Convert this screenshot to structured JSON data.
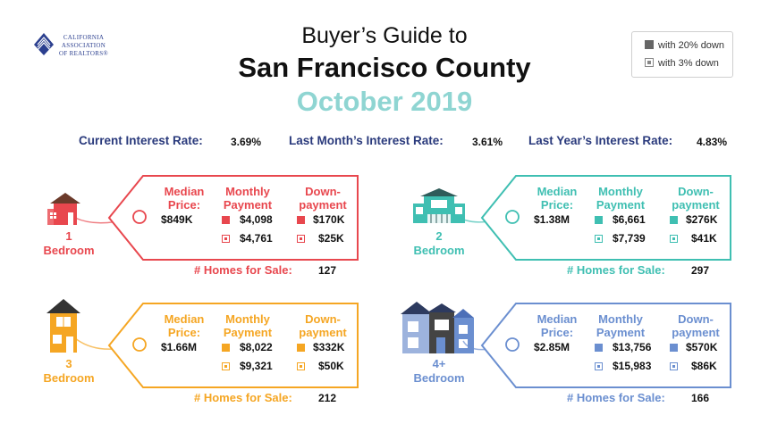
{
  "logo": {
    "line1": "CALIFORNIA",
    "line2": "ASSOCIATION",
    "line3": "OF REALTORS®"
  },
  "title": {
    "line1": "Buyer’s Guide to",
    "line2": "San Francisco County",
    "line3": "October 2019"
  },
  "legend": {
    "item1": "with 20% down",
    "item2": "with 3% down"
  },
  "rates": {
    "current_label": "Current Interest Rate:",
    "current_value": "3.69%",
    "last_month_label": "Last Month’s Interest Rate:",
    "last_month_value": "3.61%",
    "last_year_label": "Last Year’s Interest Rate:",
    "last_year_value": "4.83%"
  },
  "headers": {
    "median": "Median\nPrice:",
    "monthly": "Monthly\nPayment",
    "down": "Down-\npayment",
    "homes_for_sale": "# Homes for Sale:"
  },
  "cards": [
    {
      "bedroom_label": "1\nBedroom",
      "color": "#e8474e",
      "median": "$849K",
      "monthly_20": "$4,098",
      "monthly_3": "$4,761",
      "down_20": "$170K",
      "down_3": "$25K",
      "homes_for_sale": "127"
    },
    {
      "bedroom_label": "2\nBedroom",
      "color": "#3fbfb2",
      "median": "$1.38M",
      "monthly_20": "$6,661",
      "monthly_3": "$7,739",
      "down_20": "$276K",
      "down_3": "$41K",
      "homes_for_sale": "297"
    },
    {
      "bedroom_label": "3\nBedroom",
      "color": "#f5a623",
      "median": "$1.66M",
      "monthly_20": "$8,022",
      "monthly_3": "$9,321",
      "down_20": "$332K",
      "down_3": "$50K",
      "homes_for_sale": "212"
    },
    {
      "bedroom_label": "4+\nBedroom",
      "color": "#6b8fd0",
      "median": "$2.85M",
      "monthly_20": "$13,756",
      "monthly_3": "$15,983",
      "down_20": "$570K",
      "down_3": "$86K",
      "homes_for_sale": "166"
    }
  ]
}
